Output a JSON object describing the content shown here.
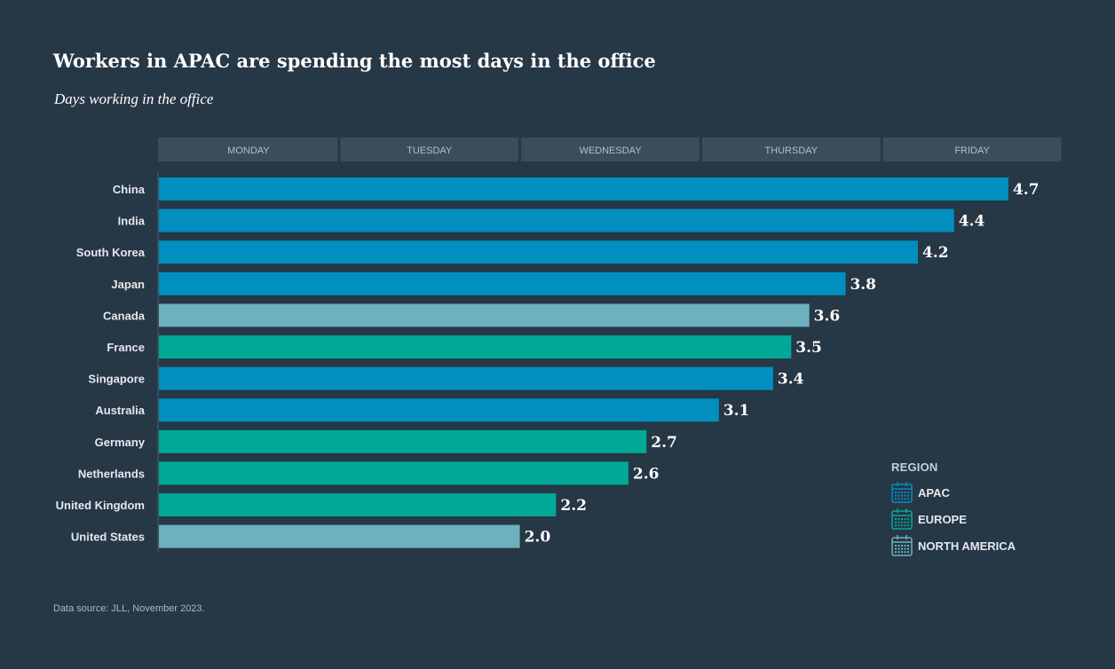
{
  "title": "Workers in APAC are spending the most days in the office",
  "subtitle": "Days working in the office",
  "source": "Data source: JLL, November 2023.",
  "colors": {
    "background": "#263746",
    "APAC": "#008fbe",
    "EUROPE": "#00a995",
    "NORTH AMERICA": "#6eb0bd",
    "day_band": "#3b4d5d"
  },
  "chart_data": {
    "type": "bar",
    "orientation": "horizontal",
    "title": "Workers in APAC are spending the most days in the office",
    "subtitle": "Days working in the office",
    "xlim": [
      0,
      5
    ],
    "day_labels": [
      "MONDAY",
      "TUESDAY",
      "WEDNESDAY",
      "THURSDAY",
      "FRIDAY"
    ],
    "categories": [
      "China",
      "India",
      "South Korea",
      "Japan",
      "Canada",
      "France",
      "Singapore",
      "Australia",
      "Germany",
      "Netherlands",
      "United Kingdom",
      "United States"
    ],
    "values": [
      4.7,
      4.4,
      4.2,
      3.8,
      3.6,
      3.5,
      3.4,
      3.1,
      2.7,
      2.6,
      2.2,
      2.0
    ],
    "value_labels": [
      "4.7",
      "4.4",
      "4.2",
      "3.8",
      "3.6",
      "3.5",
      "3.4",
      "3.1",
      "2.7",
      "2.6",
      "2.2",
      "2.0"
    ],
    "regions": [
      "APAC",
      "APAC",
      "APAC",
      "APAC",
      "NORTH AMERICA",
      "EUROPE",
      "APAC",
      "APAC",
      "EUROPE",
      "EUROPE",
      "EUROPE",
      "NORTH AMERICA"
    ],
    "legend": {
      "title": "REGION",
      "items": [
        {
          "name": "APAC",
          "label": "APAC",
          "icon": "calendar-icon"
        },
        {
          "name": "EUROPE",
          "label": "EUROPE",
          "icon": "calendar-icon"
        },
        {
          "name": "NORTH AMERICA",
          "label": "NORTH AMERICA",
          "icon": "calendar-icon"
        }
      ],
      "position": "bottom-right"
    }
  }
}
